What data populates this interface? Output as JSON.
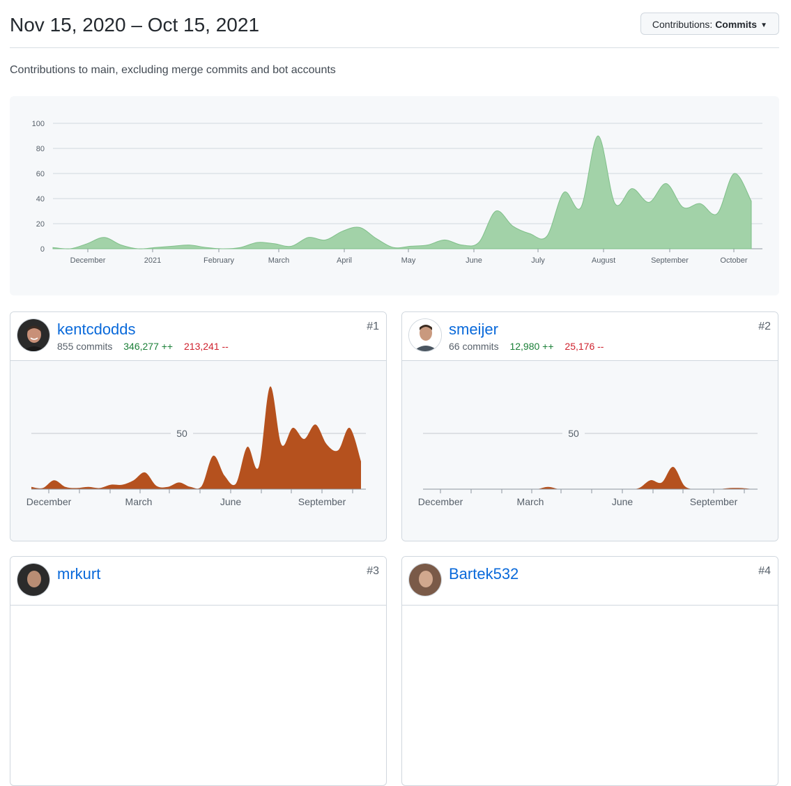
{
  "header": {
    "title": "Nov 15, 2020 – Oct 15, 2021",
    "dropdown": {
      "prefix": "Contributions:",
      "value": "Commits"
    }
  },
  "subtitle": "Contributions to main, excluding merge commits and bot accounts",
  "colors": {
    "main_fill": "#a2d2a8",
    "main_stroke": "#7fbf89",
    "contributor_fill": "#b5511e",
    "link": "#0969da",
    "additions": "#1a7f37",
    "deletions": "#cf222e"
  },
  "chart_data": [
    {
      "type": "area",
      "title": "",
      "xlabel": "",
      "ylabel": "",
      "ylim": [
        0,
        100
      ],
      "yticks": [
        0,
        20,
        40,
        60,
        80,
        100
      ],
      "grid": true,
      "x_tick_labels": [
        "December",
        "2021",
        "February",
        "March",
        "April",
        "May",
        "June",
        "July",
        "August",
        "September",
        "October"
      ],
      "x": [
        "2020-11-15",
        "2020-11-22",
        "2020-11-29",
        "2020-12-06",
        "2020-12-13",
        "2020-12-20",
        "2020-12-27",
        "2021-01-03",
        "2021-01-10",
        "2021-01-17",
        "2021-01-24",
        "2021-01-31",
        "2021-02-07",
        "2021-02-14",
        "2021-02-21",
        "2021-02-28",
        "2021-03-07",
        "2021-03-14",
        "2021-03-21",
        "2021-03-28",
        "2021-04-04",
        "2021-04-11",
        "2021-04-18",
        "2021-04-25",
        "2021-05-02",
        "2021-05-09",
        "2021-05-16",
        "2021-05-23",
        "2021-05-30",
        "2021-06-06",
        "2021-06-13",
        "2021-06-20",
        "2021-06-27",
        "2021-07-04",
        "2021-07-11",
        "2021-07-18",
        "2021-07-25",
        "2021-08-01",
        "2021-08-08",
        "2021-08-15",
        "2021-08-22",
        "2021-08-29",
        "2021-09-05",
        "2021-09-12",
        "2021-09-19",
        "2021-09-26",
        "2021-10-03",
        "2021-10-10"
      ],
      "values": [
        1,
        0,
        4,
        9,
        3,
        0,
        1,
        2,
        3,
        1,
        0,
        1,
        5,
        4,
        2,
        9,
        7,
        14,
        17,
        8,
        1,
        2,
        3,
        7,
        3,
        5,
        30,
        18,
        12,
        10,
        45,
        33,
        90,
        36,
        48,
        37,
        52,
        33,
        36,
        28,
        60,
        38,
        0,
        0,
        0,
        0,
        0,
        0
      ],
      "value_count": 42
    },
    {
      "type": "area",
      "title": "kentcdodds",
      "ylim": [
        0,
        90
      ],
      "yticks": [
        50
      ],
      "x_tick_labels": [
        "December",
        "March",
        "June",
        "September"
      ],
      "values": [
        2,
        1,
        8,
        2,
        1,
        2,
        1,
        4,
        4,
        8,
        15,
        3,
        2,
        6,
        2,
        3,
        30,
        12,
        5,
        38,
        20,
        92,
        40,
        55,
        45,
        58,
        40,
        35,
        55,
        25
      ]
    },
    {
      "type": "area",
      "title": "smeijer",
      "ylim": [
        0,
        90
      ],
      "yticks": [
        50
      ],
      "x_tick_labels": [
        "December",
        "March",
        "June",
        "September"
      ],
      "values": [
        0,
        0,
        0,
        0,
        0,
        0,
        0,
        0,
        0,
        0,
        0,
        2,
        0,
        0,
        0,
        0,
        0,
        0,
        0,
        1,
        8,
        6,
        20,
        3,
        0,
        0,
        0,
        1,
        1,
        0
      ]
    }
  ],
  "contributors": [
    {
      "rank": "#1",
      "username": "kentcdodds",
      "commits": "855 commits",
      "additions": "346,277 ++",
      "deletions": "213,241 --"
    },
    {
      "rank": "#2",
      "username": "smeijer",
      "commits": "66 commits",
      "additions": "12,980 ++",
      "deletions": "25,176 --"
    },
    {
      "rank": "#3",
      "username": "mrkurt"
    },
    {
      "rank": "#4",
      "username": "Bartek532"
    }
  ]
}
